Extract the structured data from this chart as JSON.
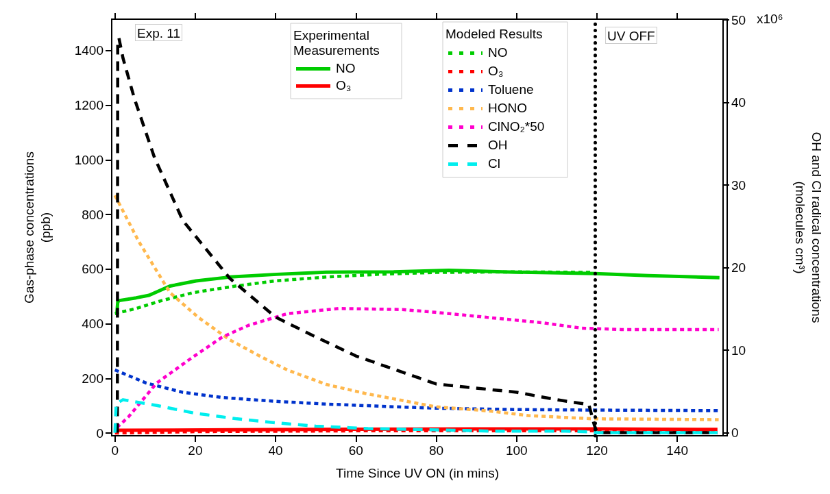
{
  "chart_data": {
    "type": "line",
    "xlabel": "Time Since UV ON (in mins)",
    "ylabel": "Gas-phase concentrations\n(ppb)",
    "y2label": "OH and Cl radical concentrations\n(molecules cm³)",
    "xlim": [
      -0.8,
      151.4
    ],
    "xticks": [
      0,
      20,
      40,
      60,
      80,
      100,
      120,
      140
    ],
    "ylim": [
      -10,
      1515
    ],
    "yticks": [
      0,
      200,
      400,
      600,
      800,
      1000,
      1200,
      1400
    ],
    "y2lim": [
      -0.37,
      50.1
    ],
    "y2ticks": [
      0,
      10,
      20,
      30,
      40,
      50
    ],
    "grid": false,
    "legend": "top",
    "annotations": [
      "Exp. 11",
      "Experimental Measurements",
      "Modeled Results",
      "x10⁶"
    ],
    "ref_lines": [
      {
        "axis": "x",
        "value": 119.5,
        "label": "UV OFF",
        "color": "#000000",
        "line_style": "dotted"
      }
    ],
    "series": [
      {
        "name": "NO",
        "color": "#00cc00",
        "line_style": "solid",
        "x": [
          0.5,
          0.7,
          1.1,
          5.3,
          8.5,
          13.7,
          20.2,
          28.6,
          40.3,
          52.6,
          69.4,
          83.1,
          99.6,
          119.5,
          132.7,
          150.5
        ],
        "values": [
          440,
          480,
          485,
          495,
          504,
          538,
          557,
          571,
          581,
          589,
          590,
          596,
          589,
          584,
          576,
          569
        ]
      },
      {
        "name": "O₃",
        "color": "#ff0000",
        "line_style": "solid",
        "x": [
          0.5,
          30,
          60,
          90,
          120,
          150
        ],
        "values": [
          10,
          12,
          14,
          15,
          15,
          13
        ]
      },
      {
        "name": "NO",
        "color": "#00cc00",
        "line_style": "dotted",
        "x": [
          0,
          5.3,
          11.7,
          19.5,
          30,
          40,
          52.6,
          65.6,
          80,
          100,
          119
        ],
        "values": [
          437,
          456,
          485,
          514,
          538,
          557,
          571,
          581,
          588,
          590,
          588
        ]
      },
      {
        "name": "O₃",
        "color": "#ff0000",
        "line_style": "dotted",
        "x": [
          0,
          20,
          60,
          120,
          150
        ],
        "values": [
          0,
          5,
          8,
          8,
          8
        ]
      },
      {
        "name": "Toluene",
        "color": "#0033cc",
        "line_style": "dotted",
        "x": [
          0,
          7.8,
          16.9,
          26.7,
          40,
          52.6,
          71.5,
          79.8,
          99.6,
          119.5,
          150.3
        ],
        "values": [
          231,
          183,
          149,
          130,
          116,
          106,
          95,
          91,
          86,
          84,
          82
        ]
      },
      {
        "name": "HONO",
        "color": "#ffb84d",
        "line_style": "dotted",
        "x": [
          0,
          5.9,
          13.7,
          20.8,
          28.6,
          36.4,
          42.9,
          52.6,
          62.3,
          72,
          79.8,
          93,
          102.9,
          118.9,
          150.3
        ],
        "values": [
          870,
          702,
          514,
          423,
          341,
          279,
          231,
          178,
          145,
          118,
          96,
          81,
          64,
          52,
          49
        ]
      },
      {
        "name": "ClNO₂*50",
        "color": "#ff00cc",
        "line_style": "dotted",
        "x": [
          0.5,
          3.3,
          10.4,
          19,
          26.7,
          33.2,
          42.9,
          55.8,
          71.5,
          79.8,
          93,
          106.2,
          116.1,
          126,
          150.3
        ],
        "values": [
          20,
          58,
          183,
          274,
          351,
          394,
          437,
          456,
          452,
          442,
          423,
          404,
          384,
          379,
          379
        ]
      },
      {
        "name": "OH",
        "color": "#000000",
        "line_style": "dashed",
        "axis": "y2",
        "x": [
          0.6,
          0.7,
          1,
          2,
          4.9,
          9.8,
          16.9,
          22.1,
          28.6,
          40,
          50,
          60,
          70,
          80,
          100,
          110,
          118,
          119.3,
          120,
          150
        ],
        "values": [
          0,
          47,
          47.8,
          45.4,
          40.4,
          33.4,
          25.7,
          22.6,
          18.7,
          14,
          11.6,
          9.3,
          7.6,
          5.9,
          4.9,
          4,
          3.4,
          1,
          0,
          0
        ]
      },
      {
        "name": "Cl",
        "color": "#00eeee",
        "line_style": "dashed",
        "axis": "y2",
        "x": [
          0,
          0.3,
          2,
          10.4,
          19.5,
          30,
          40,
          50,
          63,
          75,
          93,
          112,
          118.5,
          120,
          150
        ],
        "values": [
          0,
          3.5,
          4,
          3.3,
          2.4,
          1.7,
          1.2,
          0.8,
          0.5,
          0.4,
          0.2,
          0.2,
          0.1,
          0,
          0
        ]
      }
    ]
  }
}
